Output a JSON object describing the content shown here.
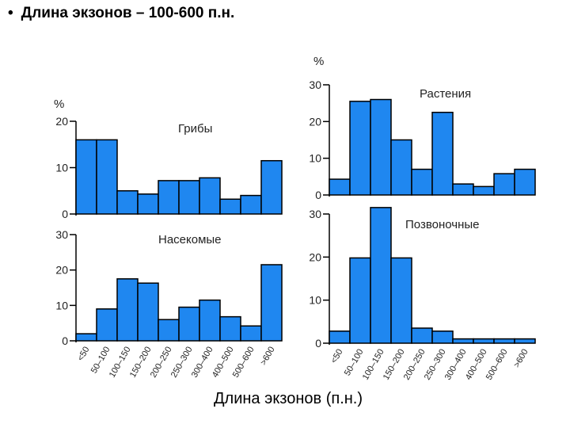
{
  "slide": {
    "bullet": "•",
    "title": "Длина экзонов – 100-600 п.н."
  },
  "chart_data": [
    {
      "type": "bar",
      "title": "Грибы",
      "ylabel": "%",
      "ylim": [
        0,
        20
      ],
      "yticks": [
        0,
        10,
        20
      ],
      "categories": [
        "<50",
        "50–100",
        "100–150",
        "150–200",
        "200–250",
        "250–300",
        "300–400",
        "400–500",
        "500–600",
        ">600"
      ],
      "values": [
        16,
        16,
        5,
        4.3,
        7.2,
        7.2,
        7.8,
        3.2,
        4,
        11.5
      ]
    },
    {
      "type": "bar",
      "title": "Насекомые",
      "ylabel": "",
      "ylim": [
        0,
        30
      ],
      "yticks": [
        0,
        10,
        20,
        30
      ],
      "categories": [
        "<50",
        "50–100",
        "100–150",
        "150–200",
        "200–250",
        "250–300",
        "300–400",
        "400–500",
        "500–600",
        ">600"
      ],
      "values": [
        2,
        9,
        17.5,
        16.3,
        6,
        9.5,
        11.5,
        6.8,
        4.2,
        21.5
      ]
    },
    {
      "type": "bar",
      "title": "Растения",
      "ylabel": "%",
      "ylim": [
        0,
        30
      ],
      "yticks": [
        0,
        10,
        20,
        30
      ],
      "categories": [
        "<50",
        "50–100",
        "100–150",
        "150–200",
        "200–250",
        "250–300",
        "300–400",
        "400–500",
        "500–600",
        ">600"
      ],
      "values": [
        4.3,
        25.5,
        26,
        15,
        7,
        22.5,
        3,
        2.3,
        5.8,
        7
      ]
    },
    {
      "type": "bar",
      "title": "Позвоночные",
      "ylabel": "",
      "ylim": [
        0,
        30
      ],
      "yticks": [
        0,
        10,
        20,
        30
      ],
      "categories": [
        "<50",
        "50–100",
        "100–150",
        "150–200",
        "200–250",
        "250–300",
        "300–400",
        "400–500",
        "500–600",
        ">600"
      ],
      "values": [
        2.8,
        19.8,
        31.5,
        19.8,
        3.5,
        2.8,
        1,
        1,
        1,
        1
      ]
    }
  ],
  "xlabel": "Длина экзонов (п.н.)",
  "colors": {
    "bar_fill": "#1f87f0",
    "bar_stroke": "#000000"
  }
}
